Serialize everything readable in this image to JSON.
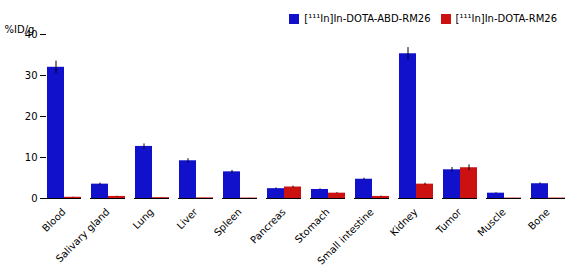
{
  "chart_data": {
    "type": "bar",
    "categories": [
      "Blood",
      "Salivary gland",
      "Lung",
      "Liver",
      "Spleen",
      "Pancreas",
      "Stomach",
      "Small intestine",
      "Kidney",
      "Tumor",
      "Muscle",
      "Bone"
    ],
    "series": [
      {
        "name": "[¹¹¹In]In-DOTA-ABD-RM26",
        "color": "#1111CC",
        "values": [
          32.0,
          3.5,
          12.7,
          9.2,
          6.5,
          2.4,
          2.2,
          4.7,
          35.3,
          7.0,
          1.3,
          3.6
        ],
        "errors": [
          1.5,
          0.25,
          0.6,
          0.5,
          0.35,
          0.18,
          0.15,
          0.25,
          1.5,
          0.55,
          0.1,
          0.2
        ]
      },
      {
        "name": "[¹¹¹In]In-DOTA-RM26",
        "color": "#CC1111",
        "values": [
          0.3,
          0.5,
          0.2,
          0.15,
          0.1,
          2.8,
          1.3,
          0.5,
          3.5,
          7.5,
          0.1,
          0.1
        ],
        "errors": [
          0.04,
          0.06,
          0.03,
          0.02,
          0.02,
          0.2,
          0.12,
          0.08,
          0.25,
          0.7,
          0.015,
          0.015
        ]
      }
    ],
    "ylabel": "%ID/g",
    "ylim": [
      0,
      40
    ],
    "yticks": [
      0,
      10,
      20,
      30,
      40
    ],
    "grid": false,
    "legend": "upper right"
  }
}
